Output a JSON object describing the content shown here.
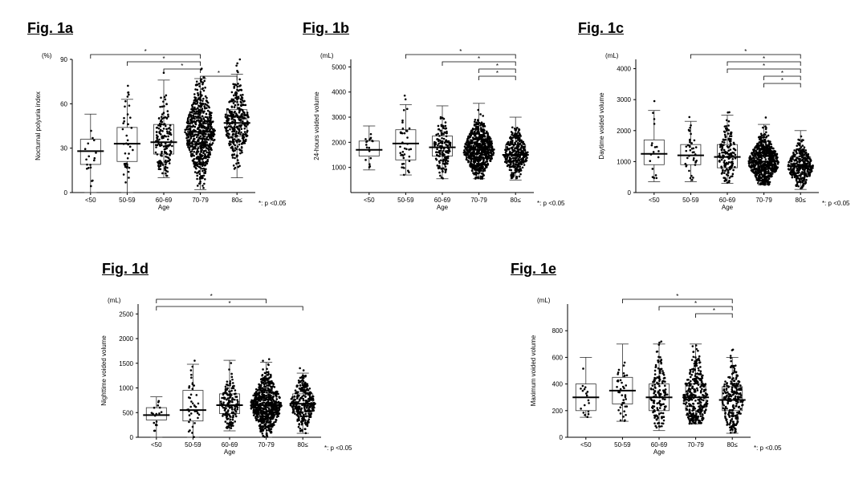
{
  "figures": [
    {
      "id": "a",
      "title": "Fig. 1a",
      "chart_data": {
        "type": "box-dot",
        "unit": "(%)",
        "ylabel": "Nocturnal polyuria index",
        "xlabel": "Age",
        "categories": [
          "<50",
          "50-59",
          "60-69",
          "70-79",
          "80≤"
        ],
        "ylim": [
          0,
          90
        ],
        "yticks": [
          0,
          30,
          60,
          90
        ],
        "boxes": [
          {
            "min": 0,
            "q1": 19,
            "median": 28,
            "q3": 36,
            "max": 53,
            "n": 18
          },
          {
            "min": 0,
            "q1": 21,
            "median": 33,
            "q3": 44,
            "max": 63,
            "n": 40
          },
          {
            "min": 10,
            "q1": 26,
            "median": 34,
            "q3": 46,
            "max": 76,
            "n": 160
          },
          {
            "min": 2,
            "q1": 31,
            "median": 41,
            "q3": 51,
            "max": 77,
            "n": 650
          },
          {
            "min": 10,
            "q1": 38,
            "median": 47,
            "q3": 56,
            "max": 80,
            "n": 320
          }
        ],
        "significance": [
          [
            0,
            3
          ],
          [
            1,
            3
          ],
          [
            2,
            3
          ],
          [
            3,
            4
          ]
        ],
        "note": "*: p <0.05"
      }
    },
    {
      "id": "b",
      "title": "Fig. 1b",
      "chart_data": {
        "type": "box-dot",
        "unit": "(mL)",
        "ylabel": "24-hours voided volume",
        "xlabel": "Age",
        "categories": [
          "<50",
          "50-59",
          "60-69",
          "70-79",
          "80≤"
        ],
        "ylim": [
          0,
          5300
        ],
        "yticks": [
          1000,
          2000,
          3000,
          4000,
          5000
        ],
        "boxes": [
          {
            "min": 900,
            "q1": 1450,
            "median": 1700,
            "q3": 2050,
            "max": 2650,
            "n": 18
          },
          {
            "min": 700,
            "q1": 1300,
            "median": 1950,
            "q3": 2500,
            "max": 3500,
            "n": 40
          },
          {
            "min": 550,
            "q1": 1450,
            "median": 1800,
            "q3": 2250,
            "max": 3450,
            "n": 160
          },
          {
            "min": 550,
            "q1": 1350,
            "median": 1700,
            "q3": 2100,
            "max": 3550,
            "n": 650
          },
          {
            "min": 500,
            "q1": 1250,
            "median": 1500,
            "q3": 1900,
            "max": 3000,
            "n": 320
          }
        ],
        "significance": [
          [
            1,
            4
          ],
          [
            2,
            4
          ],
          [
            3,
            4
          ],
          [
            3,
            4
          ]
        ],
        "note": "*: p <0.05"
      }
    },
    {
      "id": "c",
      "title": "Fig. 1c",
      "chart_data": {
        "type": "box-dot",
        "unit": "(mL)",
        "ylabel": "Daytime voided volume",
        "xlabel": "Age",
        "categories": [
          "<50",
          "50-59",
          "60-69",
          "70-79",
          "80≤"
        ],
        "ylim": [
          0,
          4300
        ],
        "yticks": [
          0,
          1000,
          2000,
          3000,
          4000
        ],
        "boxes": [
          {
            "min": 350,
            "q1": 900,
            "median": 1250,
            "q3": 1700,
            "max": 2650,
            "n": 18
          },
          {
            "min": 350,
            "q1": 900,
            "median": 1200,
            "q3": 1550,
            "max": 2300,
            "n": 40
          },
          {
            "min": 300,
            "q1": 800,
            "median": 1150,
            "q3": 1550,
            "max": 2500,
            "n": 160
          },
          {
            "min": 250,
            "q1": 750,
            "median": 1000,
            "q3": 1300,
            "max": 2200,
            "n": 650
          },
          {
            "min": 100,
            "q1": 650,
            "median": 850,
            "q3": 1150,
            "max": 2000,
            "n": 320
          }
        ],
        "significance": [
          [
            1,
            4
          ],
          [
            2,
            4
          ],
          [
            2,
            4
          ],
          [
            3,
            4
          ],
          [
            3,
            4
          ]
        ],
        "note": "*: p <0.05"
      }
    },
    {
      "id": "d",
      "title": "Fig. 1d",
      "chart_data": {
        "type": "box-dot",
        "unit": "(mL)",
        "ylabel": "Nighttime voided volume",
        "xlabel": "Age",
        "categories": [
          "<50",
          "50-59",
          "60-69",
          "70-79",
          "80≤"
        ],
        "ylim": [
          0,
          2700
        ],
        "yticks": [
          0,
          500,
          1000,
          1500,
          2000,
          2500
        ],
        "boxes": [
          {
            "min": 0,
            "q1": 350,
            "median": 450,
            "q3": 600,
            "max": 820,
            "n": 18
          },
          {
            "min": 0,
            "q1": 330,
            "median": 550,
            "q3": 950,
            "max": 1480,
            "n": 40
          },
          {
            "min": 130,
            "q1": 480,
            "median": 650,
            "q3": 880,
            "max": 1560,
            "n": 160
          },
          {
            "min": 0,
            "q1": 480,
            "median": 650,
            "q3": 900,
            "max": 1520,
            "n": 650
          },
          {
            "min": 80,
            "q1": 520,
            "median": 680,
            "q3": 880,
            "max": 1300,
            "n": 320
          }
        ],
        "significance": [
          [
            0,
            3
          ],
          [
            0,
            4
          ]
        ],
        "note": "*: p <0.05"
      }
    },
    {
      "id": "e",
      "title": "Fig. 1e",
      "chart_data": {
        "type": "box-dot",
        "unit": "(mL)",
        "ylabel": "Maximum voided volume",
        "xlabel": "Age",
        "categories": [
          "<50",
          "50-59",
          "60-69",
          "70-79",
          "80≤"
        ],
        "ylim": [
          0,
          1000
        ],
        "yticks": [
          0,
          200,
          400,
          600,
          800
        ],
        "boxes": [
          {
            "min": 150,
            "q1": 200,
            "median": 300,
            "q3": 400,
            "max": 600,
            "n": 18
          },
          {
            "min": 120,
            "q1": 250,
            "median": 350,
            "q3": 450,
            "max": 700,
            "n": 40
          },
          {
            "min": 50,
            "q1": 200,
            "median": 300,
            "q3": 400,
            "max": 700,
            "n": 160
          },
          {
            "min": 100,
            "q1": 200,
            "median": 300,
            "q3": 400,
            "max": 700,
            "n": 320
          },
          {
            "min": 30,
            "q1": 200,
            "median": 280,
            "q3": 380,
            "max": 600,
            "n": 250
          }
        ],
        "significance": [
          [
            1,
            4
          ],
          [
            2,
            4
          ],
          [
            3,
            4
          ]
        ],
        "note": "*: p <0.05"
      }
    }
  ]
}
